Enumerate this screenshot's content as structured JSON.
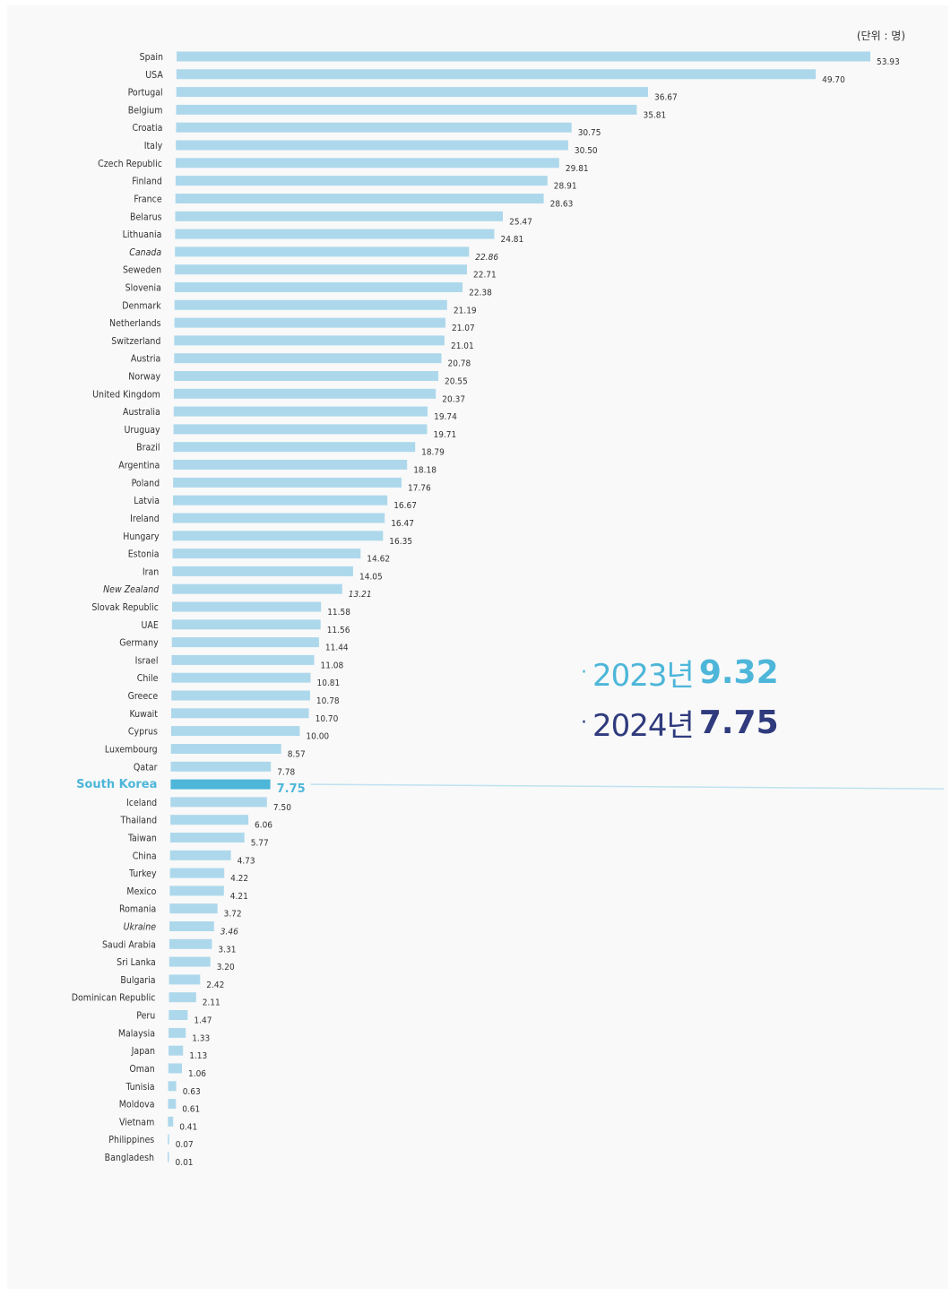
{
  "unit_label": "(단위 : 명)",
  "legend": [
    {
      "bullet": "·",
      "year": "2023년",
      "value": "9.32",
      "color": "#4db6d9"
    },
    {
      "bullet": "·",
      "year": "2024년",
      "value": "7.75",
      "color": "#2f3b7d"
    }
  ],
  "colors": {
    "bar": "#add8ec",
    "highlight_bar": "#4db6d9",
    "highlight_text": "#4db6d9",
    "text": "#333333"
  },
  "chart_data": {
    "type": "bar",
    "orientation": "horizontal",
    "title": "",
    "unit": "(단위 : 명)",
    "highlight": "South Korea",
    "categories": [
      "Spain",
      "USA",
      "Portugal",
      "Belgium",
      "Croatia",
      "Italy",
      "Czech Republic",
      "Finland",
      "France",
      "Belarus",
      "Lithuania",
      "Canada",
      "Seweden",
      "Slovenia",
      "Denmark",
      "Netherlands",
      "Switzerland",
      "Austria",
      "Norway",
      "United Kingdom",
      "Australia",
      "Uruguay",
      "Brazil",
      "Argentina",
      "Poland",
      "Latvia",
      "Ireland",
      "Hungary",
      "Estonia",
      "Iran",
      "New Zealand",
      "Slovak Republic",
      "UAE",
      "Germany",
      "Israel",
      "Chile",
      "Greece",
      "Kuwait",
      "Cyprus",
      "Luxembourg",
      "Qatar",
      "South Korea",
      "Iceland",
      "Thailand",
      "Taiwan",
      "China",
      "Turkey",
      "Mexico",
      "Romania",
      "Ukraine",
      "Saudi Arabia",
      "Sri Lanka",
      "Bulgaria",
      "Dominican Republic",
      "Peru",
      "Malaysia",
      "Japan",
      "Oman",
      "Tunisia",
      "Moldova",
      "Vietnam",
      "Philippines",
      "Bangladesh"
    ],
    "values": [
      53.93,
      49.7,
      36.67,
      35.81,
      30.75,
      30.5,
      29.81,
      28.91,
      28.63,
      25.47,
      24.81,
      22.86,
      22.71,
      22.38,
      21.19,
      21.07,
      21.01,
      20.78,
      20.55,
      20.37,
      19.74,
      19.71,
      18.79,
      18.18,
      17.76,
      16.67,
      16.47,
      16.35,
      14.62,
      14.05,
      13.21,
      11.58,
      11.56,
      11.44,
      11.08,
      10.81,
      10.78,
      10.7,
      10.0,
      8.57,
      7.78,
      7.75,
      7.5,
      6.06,
      5.77,
      4.73,
      4.22,
      4.21,
      3.72,
      3.46,
      3.31,
      3.2,
      2.42,
      2.11,
      1.47,
      1.33,
      1.13,
      1.06,
      0.63,
      0.61,
      0.41,
      0.07,
      0.01
    ],
    "value_labels": [
      "53.93",
      "49.70",
      "36.67",
      "35.81",
      "30.75",
      "30.50",
      "29.81",
      "28.91",
      "28.63",
      "25.47",
      "24.81",
      "22.86",
      "22.71",
      "22.38",
      "21.19",
      "21.07",
      "21.01",
      "20.78",
      "20.55",
      "20.37",
      "19.74",
      "19.71",
      "18.79",
      "18.18",
      "17.76",
      "16.67",
      "16.47",
      "16.35",
      "14.62",
      "14.05",
      "13.21",
      "11.58",
      "11.56",
      "11.44",
      "11.08",
      "10.81",
      "10.78",
      "10.70",
      "10.00",
      "8.57",
      "7.78",
      "7.75",
      "7.50",
      "6.06",
      "5.77",
      "4.73",
      "4.22",
      "4.21",
      "3.72",
      "3.46",
      "3.31",
      "3.20",
      "2.42",
      "2.11",
      "1.47",
      "1.33",
      "1.13",
      "1.06",
      "0.63",
      "0.61",
      "0.41",
      "0.07",
      "0.01"
    ],
    "italic": [
      "Canada",
      "New Zealand",
      "Ukraine"
    ]
  }
}
